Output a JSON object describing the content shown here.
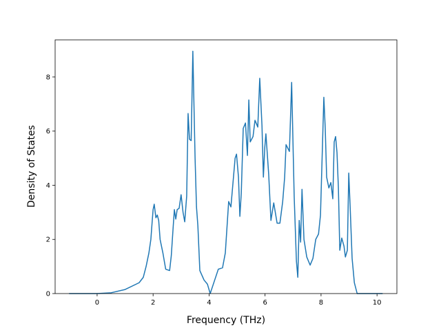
{
  "chart_data": {
    "type": "line",
    "x_label": "Frequency (THz)",
    "y_label": "Density of States",
    "xlim": [
      -1.5,
      10.71
    ],
    "ylim": [
      0,
      9.37
    ],
    "xticks": [
      0,
      2,
      4,
      6,
      8,
      10
    ],
    "yticks": [
      0,
      2,
      4,
      6,
      8
    ],
    "series": [
      {
        "color": "#1f77b4",
        "x": [
          -1,
          0,
          0.5,
          1,
          1.5,
          1.65,
          1.75,
          1.85,
          1.92,
          1.97,
          2.0,
          2.04,
          2.1,
          2.15,
          2.2,
          2.25,
          2.35,
          2.45,
          2.59,
          2.65,
          2.72,
          2.76,
          2.81,
          2.86,
          2.93,
          3.0,
          3.07,
          3.13,
          3.2,
          3.25,
          3.3,
          3.36,
          3.42,
          3.5,
          3.55,
          3.6,
          3.67,
          3.82,
          3.94,
          4.04,
          4.33,
          4.48,
          4.58,
          4.7,
          4.78,
          4.93,
          4.98,
          5.05,
          5.1,
          5.15,
          5.22,
          5.3,
          5.37,
          5.42,
          5.47,
          5.57,
          5.64,
          5.74,
          5.81,
          5.89,
          5.94,
          5.99,
          6.03,
          6.13,
          6.21,
          6.31,
          6.43,
          6.53,
          6.63,
          6.7,
          6.75,
          6.87,
          6.95,
          7.04,
          7.12,
          7.17,
          7.22,
          7.27,
          7.32,
          7.39,
          7.49,
          7.61,
          7.71,
          7.81,
          7.91,
          7.98,
          8.1,
          8.15,
          8.2,
          8.28,
          8.35,
          8.42,
          8.47,
          8.52,
          8.57,
          8.62,
          8.67,
          8.74,
          8.82,
          8.87,
          8.94,
          8.99,
          9.04,
          9.11,
          9.19,
          9.29,
          10.2
        ],
        "values": [
          0,
          0,
          0.03,
          0.15,
          0.4,
          0.6,
          1.0,
          1.5,
          2.0,
          2.7,
          3.1,
          3.3,
          2.8,
          2.9,
          2.7,
          2.0,
          1.5,
          0.9,
          0.85,
          1.4,
          2.5,
          3.1,
          2.75,
          3.1,
          3.15,
          3.65,
          3.0,
          2.65,
          3.6,
          6.65,
          5.7,
          5.65,
          8.95,
          5.0,
          3.2,
          2.5,
          0.85,
          0.5,
          0.35,
          0,
          0.9,
          0.95,
          1.5,
          3.4,
          3.2,
          5.0,
          5.15,
          4.3,
          2.85,
          3.7,
          6.1,
          6.3,
          5.1,
          7.15,
          5.6,
          5.8,
          6.4,
          6.15,
          7.95,
          6.2,
          4.3,
          5.4,
          5.9,
          4.4,
          2.7,
          3.35,
          2.6,
          2.6,
          3.4,
          4.3,
          5.5,
          5.25,
          7.8,
          3.6,
          1.2,
          0.6,
          2.7,
          1.9,
          3.85,
          2.0,
          1.35,
          1.05,
          1.3,
          2.0,
          2.2,
          2.9,
          7.25,
          6.1,
          4.3,
          3.9,
          4.1,
          3.5,
          5.6,
          5.8,
          5.2,
          3.9,
          1.6,
          2.05,
          1.75,
          1.35,
          1.6,
          4.45,
          3.2,
          1.3,
          0.4,
          0,
          0
        ]
      }
    ]
  }
}
